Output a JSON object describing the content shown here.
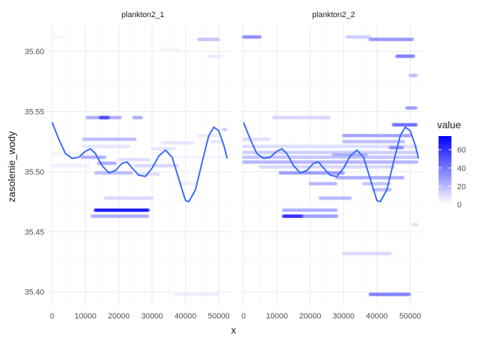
{
  "chart_data": {
    "type": "scatter",
    "xlabel": "x",
    "ylabel": "zasolenie_wody",
    "x_ticks": [
      0,
      10000,
      20000,
      30000,
      40000,
      50000
    ],
    "y_ticks": [
      35.4,
      35.45,
      35.5,
      35.55,
      35.6
    ],
    "y_tick_labels": [
      "35.40",
      "35.45",
      "35.50",
      "35.55",
      "35.60"
    ],
    "xlim": [
      -1500,
      54000
    ],
    "ylim": [
      35.388,
      35.622
    ],
    "legend": {
      "title": "value",
      "ticks": [
        0,
        20,
        40,
        60
      ],
      "range": [
        0,
        75
      ],
      "low_color": "#ffffff",
      "high_color": "#0000ff",
      "position": "right"
    },
    "smooth_color": "#3366ff",
    "grid": true,
    "panels": [
      {
        "title": "plankton2_1",
        "smooth": [
          [
            0,
            35.541
          ],
          [
            2000,
            35.527
          ],
          [
            4000,
            35.515
          ],
          [
            6000,
            35.511
          ],
          [
            8000,
            35.512
          ],
          [
            10000,
            35.517
          ],
          [
            11500,
            35.519
          ],
          [
            13000,
            35.515
          ],
          [
            15000,
            35.505
          ],
          [
            17000,
            35.499
          ],
          [
            19000,
            35.501
          ],
          [
            21000,
            35.507
          ],
          [
            22500,
            35.508
          ],
          [
            24000,
            35.503
          ],
          [
            26000,
            35.497
          ],
          [
            28000,
            35.496
          ],
          [
            30000,
            35.503
          ],
          [
            32000,
            35.513
          ],
          [
            34000,
            35.518
          ],
          [
            36000,
            35.512
          ],
          [
            38000,
            35.494
          ],
          [
            40000,
            35.476
          ],
          [
            41000,
            35.475
          ],
          [
            43000,
            35.485
          ],
          [
            45000,
            35.508
          ],
          [
            47000,
            35.53
          ],
          [
            48500,
            35.537
          ],
          [
            50000,
            35.534
          ],
          [
            51500,
            35.522
          ],
          [
            52500,
            35.511
          ]
        ],
        "segments": [
          {
            "x0": 0,
            "x1": 4000,
            "y": 35.612,
            "v": 3,
            "step": 450
          },
          {
            "x0": 0,
            "x1": 12000,
            "y": 35.515,
            "v": 3,
            "step": 450
          },
          {
            "x0": 0,
            "x1": 11000,
            "y": 35.505,
            "v": 5,
            "step": 450
          },
          {
            "x0": 10500,
            "x1": 20500,
            "y": 35.545,
            "v": 25,
            "step": 450
          },
          {
            "x0": 14500,
            "x1": 17000,
            "y": 35.545,
            "v": 55,
            "step": 450
          },
          {
            "x0": 24500,
            "x1": 27000,
            "y": 35.545,
            "v": 25,
            "step": 450
          },
          {
            "x0": 9500,
            "x1": 25000,
            "y": 35.527,
            "v": 20,
            "step": 450
          },
          {
            "x0": 9500,
            "x1": 23000,
            "y": 35.521,
            "v": 8,
            "step": 450
          },
          {
            "x0": 9000,
            "x1": 16000,
            "y": 35.512,
            "v": 25,
            "step": 450
          },
          {
            "x0": 14000,
            "x1": 19000,
            "y": 35.507,
            "v": 25,
            "step": 450
          },
          {
            "x0": 13000,
            "x1": 24000,
            "y": 35.499,
            "v": 20,
            "step": 450
          },
          {
            "x0": 20000,
            "x1": 29000,
            "y": 35.51,
            "v": 10,
            "step": 450
          },
          {
            "x0": 25000,
            "x1": 38000,
            "y": 35.505,
            "v": 12,
            "step": 450
          },
          {
            "x0": 26000,
            "x1": 32000,
            "y": 35.498,
            "v": 10,
            "step": 450
          },
          {
            "x0": 16000,
            "x1": 30000,
            "y": 35.478,
            "v": 12,
            "step": 450
          },
          {
            "x0": 13000,
            "x1": 29000,
            "y": 35.468,
            "v": 72,
            "step": 450
          },
          {
            "x0": 12000,
            "x1": 29000,
            "y": 35.463,
            "v": 25,
            "step": 450
          },
          {
            "x0": 30000,
            "x1": 37000,
            "y": 35.519,
            "v": 8,
            "step": 450
          },
          {
            "x0": 33000,
            "x1": 42000,
            "y": 35.524,
            "v": 8,
            "step": 450
          },
          {
            "x0": 37000,
            "x1": 52000,
            "y": 35.512,
            "v": 3,
            "step": 450
          },
          {
            "x0": 44000,
            "x1": 50000,
            "y": 35.53,
            "v": 6,
            "step": 450
          },
          {
            "x0": 48000,
            "x1": 51000,
            "y": 35.525,
            "v": 8,
            "step": 450
          },
          {
            "x0": 51500,
            "x1": 52000,
            "y": 35.535,
            "v": 18,
            "step": 450
          },
          {
            "x0": 38000,
            "x1": 43000,
            "y": 35.49,
            "v": 5,
            "step": 450
          },
          {
            "x0": 44000,
            "x1": 50000,
            "y": 35.61,
            "v": 18,
            "step": 450
          },
          {
            "x0": 47000,
            "x1": 51000,
            "y": 35.596,
            "v": 6,
            "step": 450
          },
          {
            "x0": 37000,
            "x1": 50000,
            "y": 35.398,
            "v": 6,
            "step": 450
          },
          {
            "x0": 33000,
            "x1": 38000,
            "y": 35.602,
            "v": 3,
            "step": 450
          },
          {
            "x0": 52000,
            "x1": 52500,
            "y": 35.456,
            "v": 3,
            "step": 450
          }
        ]
      },
      {
        "title": "plankton2_2",
        "smooth": [
          [
            0,
            35.541
          ],
          [
            2000,
            35.527
          ],
          [
            4000,
            35.515
          ],
          [
            6000,
            35.511
          ],
          [
            8000,
            35.512
          ],
          [
            10000,
            35.517
          ],
          [
            11500,
            35.519
          ],
          [
            13000,
            35.515
          ],
          [
            15000,
            35.505
          ],
          [
            17000,
            35.499
          ],
          [
            19000,
            35.501
          ],
          [
            21000,
            35.507
          ],
          [
            22500,
            35.508
          ],
          [
            24000,
            35.503
          ],
          [
            26000,
            35.497
          ],
          [
            28000,
            35.496
          ],
          [
            30000,
            35.503
          ],
          [
            32000,
            35.513
          ],
          [
            34000,
            35.518
          ],
          [
            36000,
            35.512
          ],
          [
            38000,
            35.494
          ],
          [
            40000,
            35.476
          ],
          [
            41000,
            35.475
          ],
          [
            43000,
            35.485
          ],
          [
            45000,
            35.508
          ],
          [
            47000,
            35.53
          ],
          [
            48500,
            35.537
          ],
          [
            50000,
            35.534
          ],
          [
            51500,
            35.522
          ],
          [
            52500,
            35.511
          ]
        ],
        "segments": [
          {
            "x0": 0,
            "x1": 5000,
            "y": 35.612,
            "v": 35,
            "step": 450
          },
          {
            "x0": 31000,
            "x1": 38000,
            "y": 35.612,
            "v": 15,
            "step": 450
          },
          {
            "x0": 38000,
            "x1": 51000,
            "y": 35.61,
            "v": 32,
            "step": 450
          },
          {
            "x0": 46000,
            "x1": 51000,
            "y": 35.596,
            "v": 40,
            "step": 450
          },
          {
            "x0": 50000,
            "x1": 52000,
            "y": 35.58,
            "v": 20,
            "step": 450
          },
          {
            "x0": 49000,
            "x1": 52000,
            "y": 35.553,
            "v": 30,
            "step": 450
          },
          {
            "x0": 9000,
            "x1": 26000,
            "y": 35.545,
            "v": 12,
            "step": 450
          },
          {
            "x0": 45000,
            "x1": 52000,
            "y": 35.539,
            "v": 45,
            "step": 450
          },
          {
            "x0": 0,
            "x1": 8000,
            "y": 35.527,
            "v": 10,
            "step": 450
          },
          {
            "x0": 0,
            "x1": 52000,
            "y": 35.521,
            "v": 10,
            "step": 400
          },
          {
            "x0": 0,
            "x1": 52000,
            "y": 35.516,
            "v": 15,
            "step": 400
          },
          {
            "x0": 0,
            "x1": 52000,
            "y": 35.512,
            "v": 18,
            "step": 400
          },
          {
            "x0": 0,
            "x1": 52000,
            "y": 35.508,
            "v": 22,
            "step": 400
          },
          {
            "x0": 5000,
            "x1": 45000,
            "y": 35.504,
            "v": 12,
            "step": 400
          },
          {
            "x0": 11000,
            "x1": 30000,
            "y": 35.499,
            "v": 30,
            "step": 450
          },
          {
            "x0": 20000,
            "x1": 28000,
            "y": 35.49,
            "v": 22,
            "step": 450
          },
          {
            "x0": 28000,
            "x1": 48000,
            "y": 35.495,
            "v": 25,
            "step": 450
          },
          {
            "x0": 30000,
            "x1": 50000,
            "y": 35.53,
            "v": 28,
            "step": 450
          },
          {
            "x0": 30000,
            "x1": 48000,
            "y": 35.525,
            "v": 20,
            "step": 450
          },
          {
            "x0": 27000,
            "x1": 37000,
            "y": 35.514,
            "v": 25,
            "step": 450
          },
          {
            "x0": 36000,
            "x1": 44000,
            "y": 35.49,
            "v": 18,
            "step": 450
          },
          {
            "x0": 39000,
            "x1": 44000,
            "y": 35.485,
            "v": 20,
            "step": 450
          },
          {
            "x0": 23000,
            "x1": 32000,
            "y": 35.478,
            "v": 22,
            "step": 450
          },
          {
            "x0": 12000,
            "x1": 28000,
            "y": 35.468,
            "v": 25,
            "step": 450
          },
          {
            "x0": 12000,
            "x1": 18000,
            "y": 35.463,
            "v": 65,
            "step": 450
          },
          {
            "x0": 18000,
            "x1": 28000,
            "y": 35.463,
            "v": 30,
            "step": 450
          },
          {
            "x0": 30000,
            "x1": 44000,
            "y": 35.432,
            "v": 12,
            "step": 450
          },
          {
            "x0": 38000,
            "x1": 50000,
            "y": 35.398,
            "v": 40,
            "step": 450
          },
          {
            "x0": 51000,
            "x1": 52000,
            "y": 35.456,
            "v": 10,
            "step": 450
          },
          {
            "x0": 44000,
            "x1": 48000,
            "y": 35.52,
            "v": 35,
            "step": 450
          }
        ]
      }
    ]
  }
}
